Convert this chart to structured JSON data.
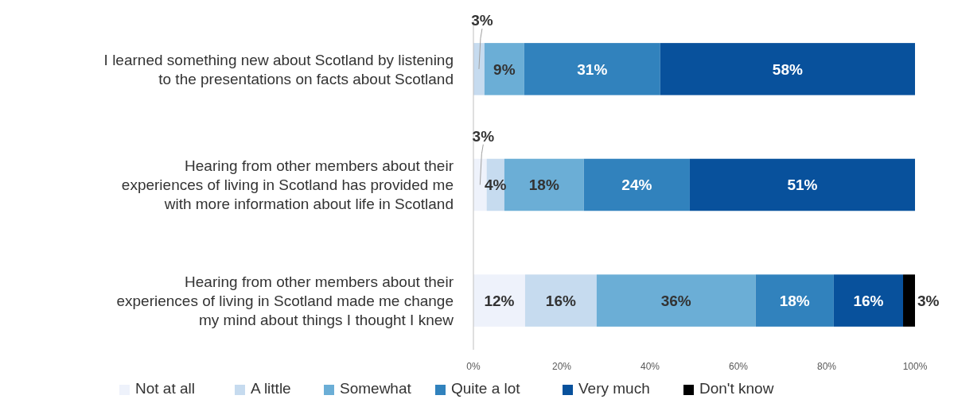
{
  "chart_data": {
    "type": "bar",
    "orientation": "horizontal",
    "stacked": true,
    "categories": [
      "I learned something new about Scotland by listening to the presentations on facts about Scotland",
      "Hearing from other members about their experiences of living in Scotland has provided me with more information about life in Scotland",
      "Hearing from other members about their experiences of living in Scotland made me change my mind about things I thought I knew"
    ],
    "series": [
      {
        "name": "Not at all",
        "color": "#eef2fb",
        "values": [
          null,
          3,
          11.7
        ],
        "value_labels": [
          null,
          "3%",
          "12%"
        ]
      },
      {
        "name": "A little",
        "color": "#c6dbef",
        "values": [
          2.5,
          4,
          16.2
        ],
        "value_labels": [
          "3%",
          "4%",
          "16%"
        ]
      },
      {
        "name": "Somewhat",
        "color": "#6baed6",
        "values": [
          9,
          18,
          36
        ],
        "value_labels": [
          "9%",
          "18%",
          "36%"
        ]
      },
      {
        "name": "Quite a lot",
        "color": "#3182bd",
        "values": [
          30.8,
          24,
          17.7
        ],
        "value_labels": [
          "31%",
          "24%",
          "18%"
        ]
      },
      {
        "name": "Very much",
        "color": "#08519c",
        "values": [
          57.7,
          51,
          15.7
        ],
        "value_labels": [
          "58%",
          "51%",
          "16%"
        ]
      },
      {
        "name": "Don't know",
        "color": "#000000",
        "values": [
          null,
          null,
          2.7
        ],
        "value_labels": [
          null,
          null,
          "3%"
        ]
      }
    ],
    "xlim": [
      0,
      100
    ],
    "xticks": [
      {
        "value": 0,
        "label": "0%"
      },
      {
        "value": 20,
        "label": "20%"
      },
      {
        "value": 40,
        "label": "40%"
      },
      {
        "value": 60,
        "label": "60%"
      },
      {
        "value": 80,
        "label": "80%"
      },
      {
        "value": 100,
        "label": "100%"
      }
    ],
    "grid": false,
    "legend": "bottom"
  }
}
